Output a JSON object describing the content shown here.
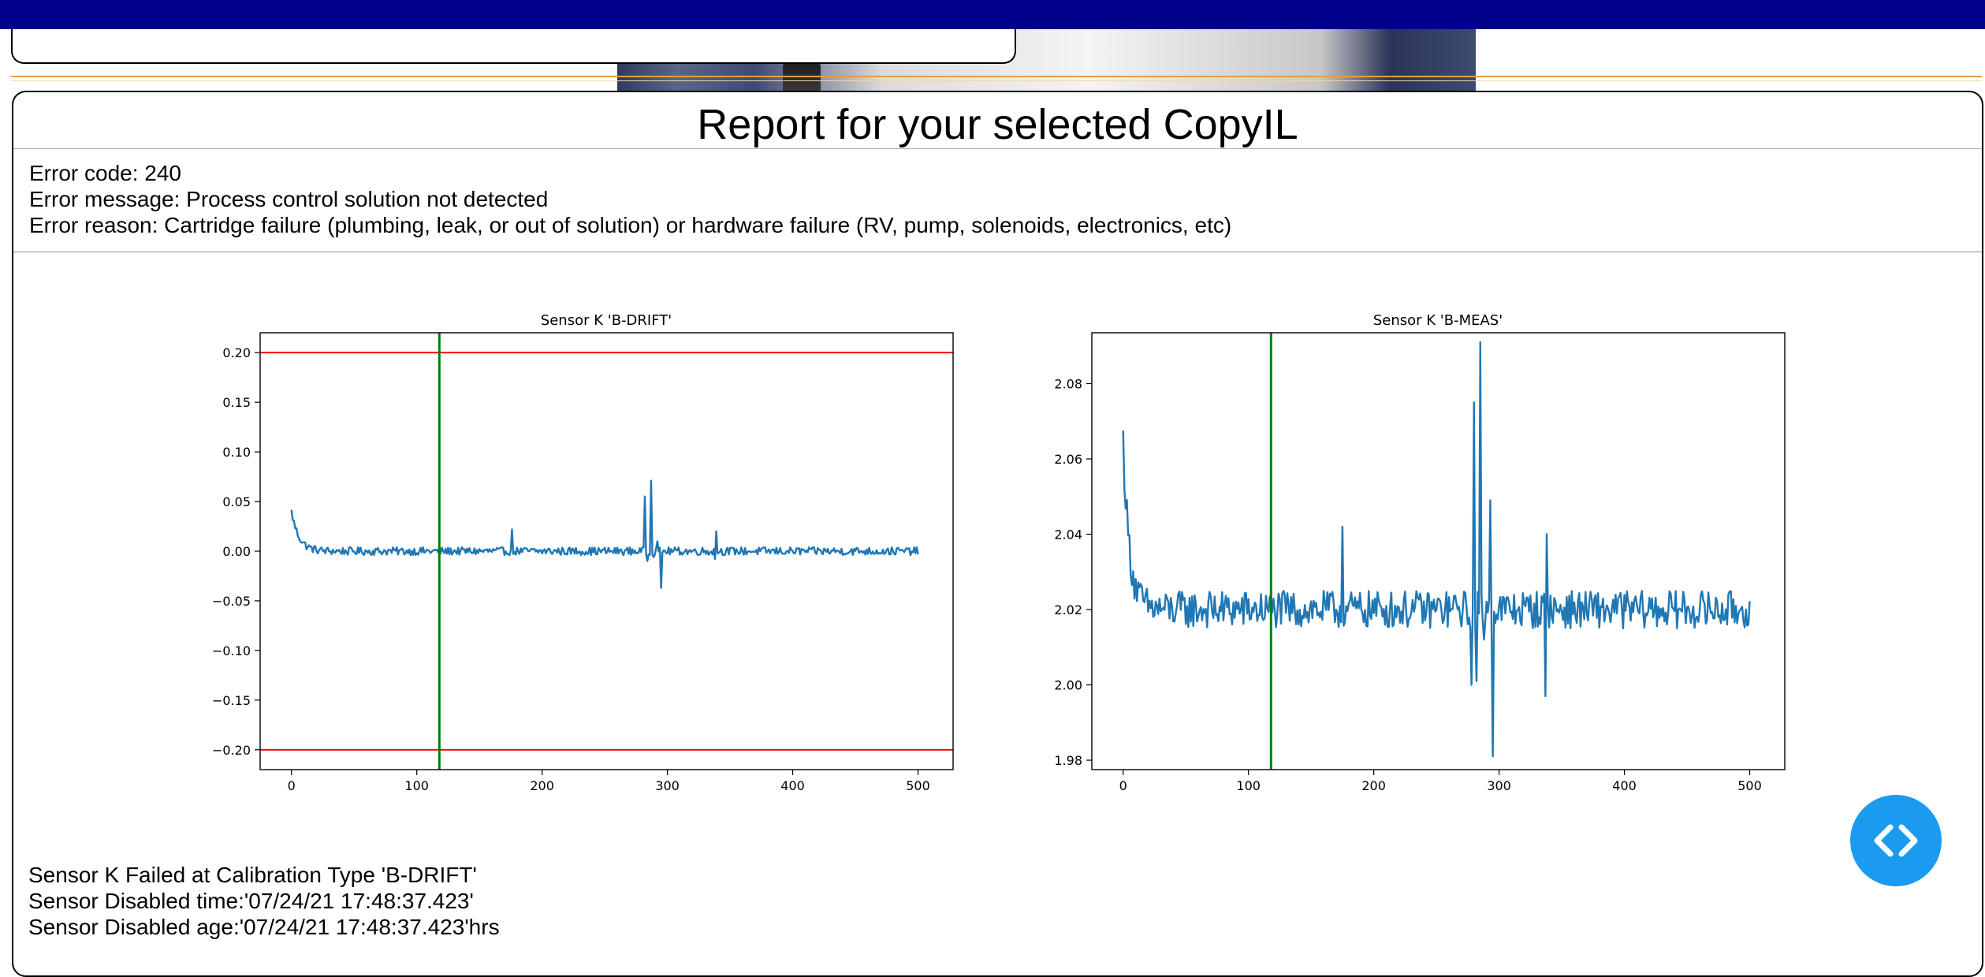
{
  "report": {
    "title": "Report for your selected CopyIL",
    "error_code_line": "Error code: 240",
    "error_message_line": "Error message: Process control solution not detected",
    "error_reason_line": "Error reason: Cartridge failure (plumbing, leak, or out of solution) or hardware failure (RV, pump, solenoids, electronics, etc)",
    "failure_line": "Sensor K Failed at Calibration Type 'B-DRIFT'",
    "disabled_time_line": "Sensor Disabled time:'07/24/21 17:48:37.423'",
    "disabled_age_line": "Sensor Disabled age:'07/24/21 17:48:37.423'hrs"
  },
  "colors": {
    "top_bar": "#00008b",
    "series_line": "#1f77b4",
    "limit_line": "#ff0000",
    "marker_line": "#008000",
    "embed_button": "#1a9bf0"
  },
  "icons": {
    "embed": "code-brackets-icon"
  },
  "chart_data": [
    {
      "type": "line",
      "title": "Sensor K 'B-DRIFT'",
      "xlim": [
        -25,
        528
      ],
      "ylim": [
        -0.22,
        0.22
      ],
      "xticks": [
        0,
        100,
        200,
        300,
        400,
        500
      ],
      "yticks": [
        0.2,
        0.15,
        0.1,
        0.05,
        0.0,
        -0.05,
        -0.1,
        -0.15,
        -0.2
      ],
      "ytick_labels": [
        "0.20",
        "0.15",
        "0.10",
        "0.05",
        "0.00",
        "−0.05",
        "−0.10",
        "−0.15",
        "−0.20"
      ],
      "hlines": [
        0.2,
        -0.2
      ],
      "vline": 118,
      "series": [
        {
          "n_points": 501,
          "baseline": 0.0,
          "noise": 0.004,
          "start_decay": [
            0.04,
            6
          ],
          "spikes": [
            [
              176,
              0.022
            ],
            [
              282,
              0.055
            ],
            [
              284,
              -0.01
            ],
            [
              287,
              0.071
            ],
            [
              289,
              -0.006
            ],
            [
              295,
              -0.037
            ],
            [
              292,
              0.01
            ],
            [
              339,
              0.02
            ],
            [
              338,
              -0.008
            ]
          ]
        }
      ],
      "grid": false
    },
    {
      "type": "line",
      "title": "Sensor K 'B-MEAS'",
      "xlim": [
        -25,
        528
      ],
      "ylim": [
        1.9775,
        2.0935
      ],
      "xticks": [
        0,
        100,
        200,
        300,
        400,
        500
      ],
      "yticks": [
        2.08,
        2.06,
        2.04,
        2.02,
        2.0,
        1.98
      ],
      "ytick_labels": [
        "2.08",
        "2.06",
        "2.04",
        "2.02",
        "2.00",
        "1.98"
      ],
      "hlines": [],
      "vline": 118,
      "series": [
        {
          "n_points": 501,
          "baseline": 2.02,
          "noise": 0.005,
          "start_decay": [
            0.045,
            5
          ],
          "spikes": [
            [
              175,
              2.042
            ],
            [
              278,
              2.0
            ],
            [
              280,
              2.075
            ],
            [
              282,
              2.001
            ],
            [
              285,
              2.091
            ],
            [
              288,
              2.012
            ],
            [
              293,
              2.049
            ],
            [
              295,
              1.981
            ],
            [
              338,
              2.04
            ],
            [
              337,
              1.997
            ]
          ]
        }
      ],
      "grid": false
    }
  ]
}
